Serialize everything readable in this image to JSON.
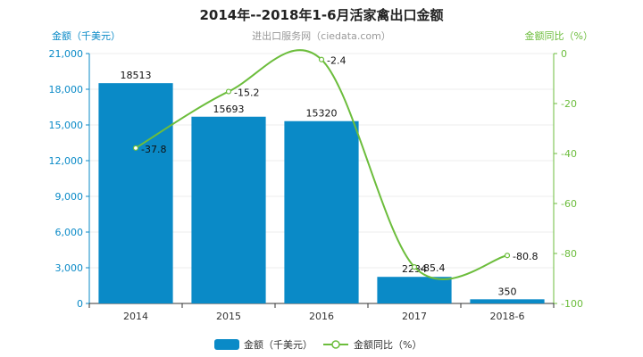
{
  "chart_data": {
    "type": "bar",
    "title": "2014年--2018年1-6月活家禽出口金额",
    "subtitle": "进出口服务网（ciedata.com）",
    "ylabel_left": "金额（千美元）",
    "ylabel_right": "金额同比（%）",
    "categories": [
      "2014",
      "2015",
      "2016",
      "2017",
      "2018-6"
    ],
    "series": [
      {
        "name": "金额（千美元）",
        "type": "bar",
        "axis": "left",
        "values": [
          18513,
          15693,
          15320,
          2234,
          350
        ],
        "labels": [
          "18513",
          "15693",
          "15320",
          "2234",
          "350"
        ]
      },
      {
        "name": "金额同比（%）",
        "type": "line",
        "axis": "right",
        "values": [
          -37.8,
          -15.2,
          -2.4,
          -85.4,
          -80.8
        ],
        "labels": [
          "-37.8",
          "-15.2",
          "-2.4",
          "-85.4",
          "-80.8"
        ]
      }
    ],
    "ylim_left": [
      0,
      21000
    ],
    "yticks_left": [
      "0",
      "3,000",
      "6,000",
      "9,000",
      "12,000",
      "15,000",
      "18,000",
      "21,000"
    ],
    "ylim_right": [
      -100,
      0
    ],
    "yticks_right": [
      "0",
      "-20",
      "-40",
      "-60",
      "-80",
      "-100"
    ],
    "legend_position": "bottom",
    "colors": {
      "bar": "#0a8ac7",
      "line": "#6cbd3c",
      "left_axis_text": "#0a8ac7",
      "right_axis_text": "#6cbd3c"
    }
  }
}
